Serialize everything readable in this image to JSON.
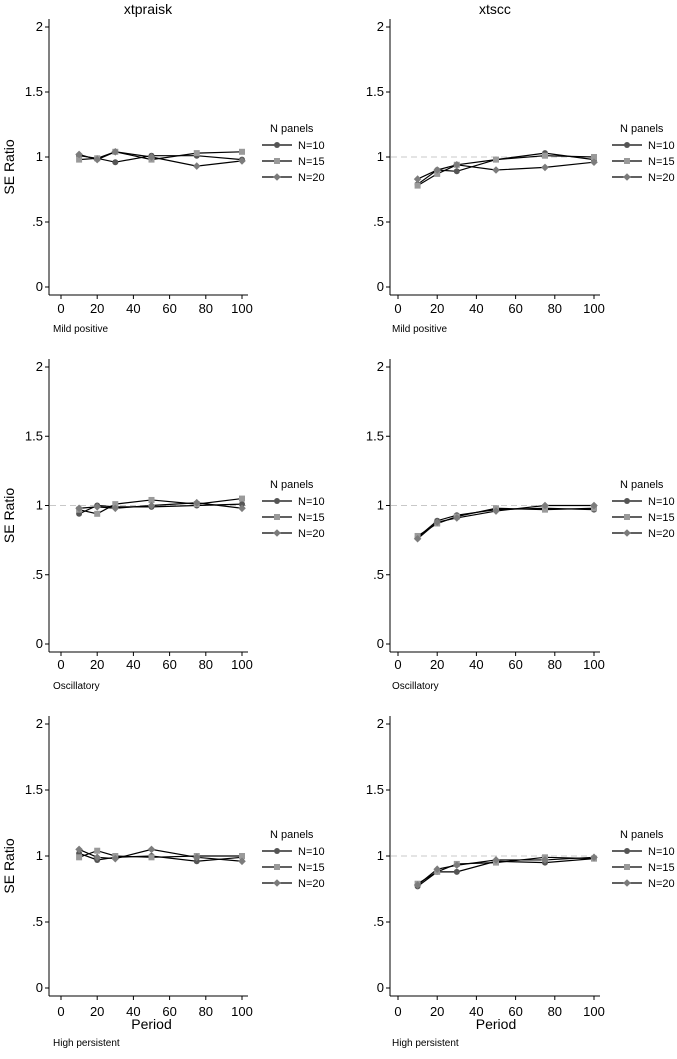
{
  "figure": {
    "column_titles": [
      "xtpraisk",
      "xtscc"
    ],
    "ylabel": "SE Ratio",
    "xlabel": "Period"
  },
  "legend": {
    "title": "N panels",
    "entries": [
      "N=10",
      "N=15",
      "N=20"
    ]
  },
  "colors": {
    "N=10": "#555555",
    "N=15": "#9a9a9a",
    "N=20": "#7c7c7c",
    "line": "#000000",
    "reference_line": "#c8c8c8"
  },
  "chart_data": [
    {
      "type": "line",
      "column_title": "xtpraisk",
      "note": "Mild positive",
      "xlabel": "",
      "ylabel": "SE Ratio",
      "x": [
        10,
        20,
        30,
        50,
        75,
        100
      ],
      "xlim": [
        0,
        100
      ],
      "ylim": [
        0,
        2
      ],
      "xticks": [
        0,
        20,
        40,
        60,
        80,
        100
      ],
      "yticks": [
        0,
        0.5,
        1,
        1.5,
        2
      ],
      "yticklabels": [
        "0",
        ".5",
        "1",
        "1.5",
        "2"
      ],
      "reference_line": null,
      "legend": "right",
      "series": [
        {
          "name": "N=10",
          "marker": "circle",
          "values": [
            1.01,
            0.99,
            0.96,
            1.01,
            1.01,
            0.98
          ]
        },
        {
          "name": "N=15",
          "marker": "square",
          "values": [
            0.98,
            0.99,
            1.04,
            0.98,
            1.03,
            1.04
          ]
        },
        {
          "name": "N=20",
          "marker": "diamond",
          "values": [
            1.02,
            0.98,
            1.04,
            1.0,
            0.93,
            0.97
          ]
        }
      ]
    },
    {
      "type": "line",
      "column_title": "xtscc",
      "note": "Mild positive",
      "xlabel": "",
      "ylabel": "",
      "x": [
        10,
        20,
        30,
        50,
        75,
        100
      ],
      "xlim": [
        0,
        100
      ],
      "ylim": [
        0,
        2
      ],
      "xticks": [
        0,
        20,
        40,
        60,
        80,
        100
      ],
      "yticks": [
        0,
        0.5,
        1,
        1.5,
        2
      ],
      "yticklabels": [
        "0",
        ".5",
        "1",
        "1.5",
        "2"
      ],
      "reference_line": 1,
      "legend": "right",
      "series": [
        {
          "name": "N=10",
          "marker": "circle",
          "values": [
            0.79,
            0.9,
            0.89,
            0.98,
            1.03,
            0.98
          ]
        },
        {
          "name": "N=15",
          "marker": "square",
          "values": [
            0.78,
            0.87,
            0.94,
            0.98,
            1.01,
            1.0
          ]
        },
        {
          "name": "N=20",
          "marker": "diamond",
          "values": [
            0.83,
            0.9,
            0.94,
            0.9,
            0.92,
            0.96
          ]
        }
      ]
    },
    {
      "type": "line",
      "column_title": "xtpraisk",
      "note": "Oscillatory",
      "xlabel": "",
      "ylabel": "SE Ratio",
      "x": [
        10,
        20,
        30,
        50,
        75,
        100
      ],
      "xlim": [
        0,
        100
      ],
      "ylim": [
        0,
        2
      ],
      "xticks": [
        0,
        20,
        40,
        60,
        80,
        100
      ],
      "yticks": [
        0,
        0.5,
        1,
        1.5,
        2
      ],
      "yticklabels": [
        "0",
        ".5",
        "1",
        "1.5",
        "2"
      ],
      "reference_line": 1,
      "legend": "right",
      "series": [
        {
          "name": "N=10",
          "marker": "circle",
          "values": [
            0.94,
            1.0,
            0.99,
            0.99,
            1.0,
            1.01
          ]
        },
        {
          "name": "N=15",
          "marker": "square",
          "values": [
            0.97,
            0.94,
            1.01,
            1.04,
            1.01,
            1.05
          ]
        },
        {
          "name": "N=20",
          "marker": "diamond",
          "values": [
            0.98,
            0.99,
            0.98,
            1.0,
            1.02,
            0.98
          ]
        }
      ]
    },
    {
      "type": "line",
      "column_title": "xtscc",
      "note": "Oscillatory",
      "xlabel": "",
      "ylabel": "",
      "x": [
        10,
        20,
        30,
        50,
        75,
        100
      ],
      "xlim": [
        0,
        100
      ],
      "ylim": [
        0,
        2
      ],
      "xticks": [
        0,
        20,
        40,
        60,
        80,
        100
      ],
      "yticks": [
        0,
        0.5,
        1,
        1.5,
        2
      ],
      "yticklabels": [
        "0",
        ".5",
        "1",
        "1.5",
        "2"
      ],
      "reference_line": 1,
      "legend": "right",
      "series": [
        {
          "name": "N=10",
          "marker": "circle",
          "values": [
            0.77,
            0.89,
            0.93,
            0.97,
            0.98,
            0.97
          ]
        },
        {
          "name": "N=15",
          "marker": "square",
          "values": [
            0.78,
            0.87,
            0.92,
            0.98,
            0.97,
            0.98
          ]
        },
        {
          "name": "N=20",
          "marker": "diamond",
          "values": [
            0.76,
            0.88,
            0.91,
            0.96,
            1.0,
            1.0
          ]
        }
      ]
    },
    {
      "type": "line",
      "column_title": "xtpraisk",
      "note": "High persistent",
      "xlabel": "Period",
      "ylabel": "SE Ratio",
      "x": [
        10,
        20,
        30,
        50,
        75,
        100
      ],
      "xlim": [
        0,
        100
      ],
      "ylim": [
        0,
        2
      ],
      "xticks": [
        0,
        20,
        40,
        60,
        80,
        100
      ],
      "yticks": [
        0,
        0.5,
        1,
        1.5,
        2
      ],
      "yticklabels": [
        "0",
        ".5",
        "1",
        "1.5",
        "2"
      ],
      "reference_line": null,
      "legend": "right",
      "series": [
        {
          "name": "N=10",
          "marker": "circle",
          "values": [
            1.02,
            0.97,
            0.99,
            1.0,
            0.96,
            0.99
          ]
        },
        {
          "name": "N=15",
          "marker": "square",
          "values": [
            0.99,
            1.04,
            1.0,
            0.99,
            1.0,
            1.0
          ]
        },
        {
          "name": "N=20",
          "marker": "diamond",
          "values": [
            1.05,
            0.99,
            0.98,
            1.05,
            0.99,
            0.96
          ]
        }
      ]
    },
    {
      "type": "line",
      "column_title": "xtscc",
      "note": "High persistent",
      "xlabel": "Period",
      "ylabel": "",
      "x": [
        10,
        20,
        30,
        50,
        75,
        100
      ],
      "xlim": [
        0,
        100
      ],
      "ylim": [
        0,
        2
      ],
      "xticks": [
        0,
        20,
        40,
        60,
        80,
        100
      ],
      "yticks": [
        0,
        0.5,
        1,
        1.5,
        2
      ],
      "yticklabels": [
        "0",
        ".5",
        "1",
        "1.5",
        "2"
      ],
      "reference_line": 1,
      "legend": "right",
      "series": [
        {
          "name": "N=10",
          "marker": "circle",
          "values": [
            0.77,
            0.88,
            0.88,
            0.96,
            0.95,
            0.98
          ]
        },
        {
          "name": "N=15",
          "marker": "square",
          "values": [
            0.79,
            0.88,
            0.94,
            0.95,
            0.99,
            0.98
          ]
        },
        {
          "name": "N=20",
          "marker": "diamond",
          "values": [
            0.78,
            0.9,
            0.93,
            0.97,
            0.97,
            0.99
          ]
        }
      ]
    }
  ]
}
